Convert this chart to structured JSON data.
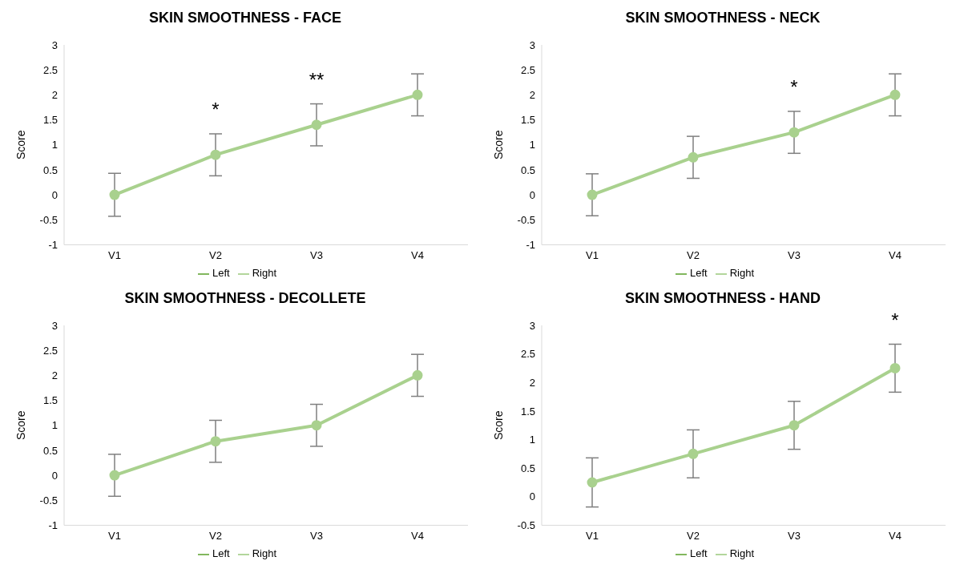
{
  "chart_data": [
    {
      "type": "line",
      "title": "SKIN SMOOTHNESS - FACE",
      "ylabel": "Score",
      "categories": [
        "V1",
        "V2",
        "V3",
        "V4"
      ],
      "ylim": [
        -1,
        3
      ],
      "yticks": [
        -1,
        -0.5,
        0,
        0.5,
        1,
        1.5,
        2,
        2.5,
        3
      ],
      "grid": false,
      "legend": "bottom",
      "marker": "circle",
      "annotations": [
        {
          "text": "*",
          "x": "V2",
          "y": 1.22
        },
        {
          "text": "**",
          "x": "V3",
          "y": 1.82
        }
      ],
      "series": [
        {
          "name": "Left",
          "color": "#70ad47",
          "values": [
            null,
            null,
            null,
            null
          ]
        },
        {
          "name": "Right",
          "color": "#a9d18e",
          "values": [
            0,
            0.8,
            1.4,
            2.0
          ],
          "errors": [
            0.43,
            0.42,
            0.42,
            0.42
          ]
        }
      ]
    },
    {
      "type": "line",
      "title": "SKIN SMOOTHNESS - NECK",
      "ylabel": "Score",
      "categories": [
        "V1",
        "V2",
        "V3",
        "V4"
      ],
      "ylim": [
        -1,
        3
      ],
      "yticks": [
        -1,
        -0.5,
        0,
        0.5,
        1,
        1.5,
        2,
        2.5,
        3
      ],
      "grid": false,
      "legend": "bottom",
      "marker": "circle",
      "annotations": [
        {
          "text": "*",
          "x": "V3",
          "y": 1.67
        }
      ],
      "series": [
        {
          "name": "Left",
          "color": "#70ad47",
          "values": [
            null,
            null,
            null,
            null
          ]
        },
        {
          "name": "Right",
          "color": "#a9d18e",
          "values": [
            0,
            0.75,
            1.25,
            2.0
          ],
          "errors": [
            0.42,
            0.42,
            0.42,
            0.42
          ]
        }
      ]
    },
    {
      "type": "line",
      "title": "SKIN SMOOTHNESS - DECOLLETE",
      "ylabel": "Score",
      "categories": [
        "V1",
        "V2",
        "V3",
        "V4"
      ],
      "ylim": [
        -1,
        3
      ],
      "yticks": [
        -1,
        -0.5,
        0,
        0.5,
        1,
        1.5,
        2,
        2.5,
        3
      ],
      "grid": false,
      "legend": "bottom",
      "marker": "circle",
      "series": [
        {
          "name": "Left",
          "color": "#70ad47",
          "values": [
            null,
            null,
            null,
            null
          ]
        },
        {
          "name": "Right",
          "color": "#a9d18e",
          "values": [
            0,
            0.68,
            1.0,
            2.0
          ],
          "errors": [
            0.42,
            0.42,
            0.42,
            0.42
          ]
        }
      ]
    },
    {
      "type": "line",
      "title": "SKIN SMOOTHNESS - HAND",
      "ylabel": "Score",
      "categories": [
        "V1",
        "V2",
        "V3",
        "V4"
      ],
      "ylim": [
        -0.5,
        3
      ],
      "yticks": [
        -0.5,
        0,
        0.5,
        1,
        1.5,
        2,
        2.5,
        3
      ],
      "grid": false,
      "legend": "bottom",
      "marker": "circle",
      "annotations": [
        {
          "text": "*",
          "x": "V4",
          "y": 2.67
        }
      ],
      "series": [
        {
          "name": "Left",
          "color": "#70ad47",
          "values": [
            null,
            null,
            null,
            null
          ]
        },
        {
          "name": "Right",
          "color": "#a9d18e",
          "values": [
            0.25,
            0.75,
            1.25,
            2.25
          ],
          "errors": [
            0.43,
            0.42,
            0.42,
            0.42
          ]
        }
      ]
    }
  ]
}
